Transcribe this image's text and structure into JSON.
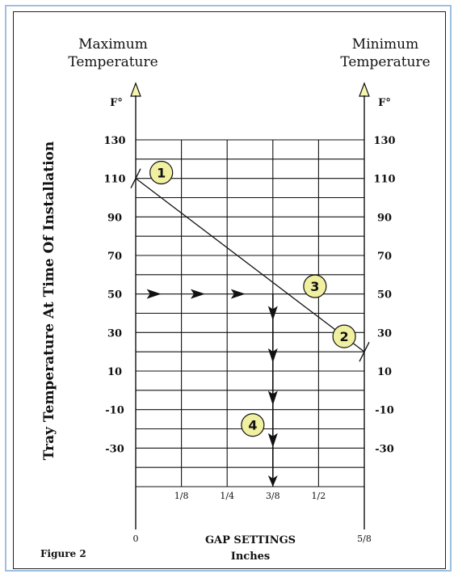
{
  "headers": {
    "left_line1": "Maximum",
    "left_line2": "Temperature",
    "right_line1": "Minimum",
    "right_line2": "Temperature"
  },
  "unit_left": "F°",
  "unit_right": "F°",
  "y_axis_label": "Tray Temperature At Time Of Installation",
  "x_axis_title_line1": "GAP SETTINGS",
  "x_axis_title_line2": "Inches",
  "figure_label": "Figure 2",
  "colors": {
    "badge_fill": "#f0f0a0",
    "arrow_head_fill": "#f5f5b0",
    "frame_border": "#9dbfe0"
  },
  "chart_data": {
    "type": "line",
    "y_ticks": [
      130,
      110,
      90,
      70,
      50,
      30,
      10,
      -10,
      -30
    ],
    "x_ticks": [
      "0",
      "1/8",
      "1/4",
      "3/8",
      "1/2",
      "5/8"
    ],
    "ylim": [
      -50,
      130
    ],
    "line": {
      "from": {
        "x": 0,
        "y": 110
      },
      "to": {
        "x": 0.625,
        "y": 20
      }
    },
    "horizontal_arrow_row_y": 50,
    "vertical_arrow_column_x": 0.375,
    "badges": [
      {
        "label": "1",
        "x": 0.07,
        "y": 113
      },
      {
        "label": "2",
        "x": 0.57,
        "y": 28
      },
      {
        "label": "3",
        "x": 0.49,
        "y": 54
      },
      {
        "label": "4",
        "x": 0.32,
        "y": -18
      }
    ]
  }
}
